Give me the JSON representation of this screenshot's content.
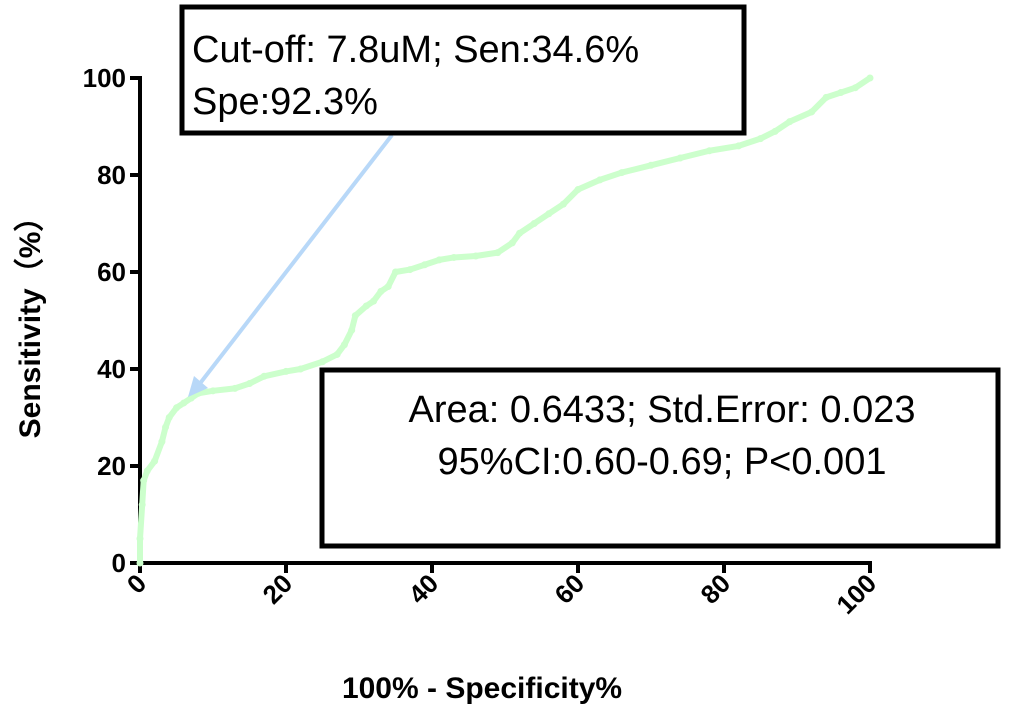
{
  "chart_data": {
    "type": "line",
    "x_label": "100%  - Specificity%",
    "y_label": "Sensitivity（%）",
    "annotations": [
      {
        "lines": [
          "Cut-off: 7.8uM; Sen:34.6%",
          "Spe:92.3%"
        ]
      },
      {
        "lines": [
          "Area: 0.6433; Std.Error: 0.023",
          "95%CI:0.60-0.69; P<0.001"
        ]
      }
    ],
    "xlim": [
      0,
      100
    ],
    "ylim": [
      0,
      100
    ],
    "xticks": [
      0,
      20,
      40,
      60,
      80,
      100
    ],
    "yticks": [
      0,
      20,
      40,
      60,
      80,
      100
    ],
    "series": [
      {
        "color": "#ccffcc",
        "x": [
          0,
          0,
          0.3,
          0.5,
          1,
          2,
          3,
          3.5,
          4,
          5,
          6,
          7,
          8,
          10,
          13,
          15,
          17,
          20,
          22,
          25,
          27,
          28,
          29,
          29.5,
          31,
          32,
          33,
          34,
          35,
          37,
          39,
          41,
          43,
          46,
          49,
          51,
          52,
          54,
          56,
          58,
          60,
          63,
          66,
          70,
          74,
          78,
          82,
          85,
          87,
          89,
          92,
          94,
          96,
          98,
          100
        ],
        "values": [
          0,
          5,
          12,
          17,
          19,
          21,
          25,
          28,
          30,
          32,
          33,
          34,
          35,
          35.5,
          36,
          37,
          38.5,
          39.5,
          40,
          41.5,
          43,
          45,
          48,
          51,
          53,
          54,
          56,
          57,
          60,
          60.5,
          61.5,
          62.5,
          63,
          63.3,
          64,
          66,
          68,
          70,
          72,
          74,
          77,
          79,
          80.5,
          82,
          83.5,
          85,
          86,
          87.5,
          89,
          91,
          93,
          96,
          97,
          98,
          100
        ]
      }
    ]
  }
}
